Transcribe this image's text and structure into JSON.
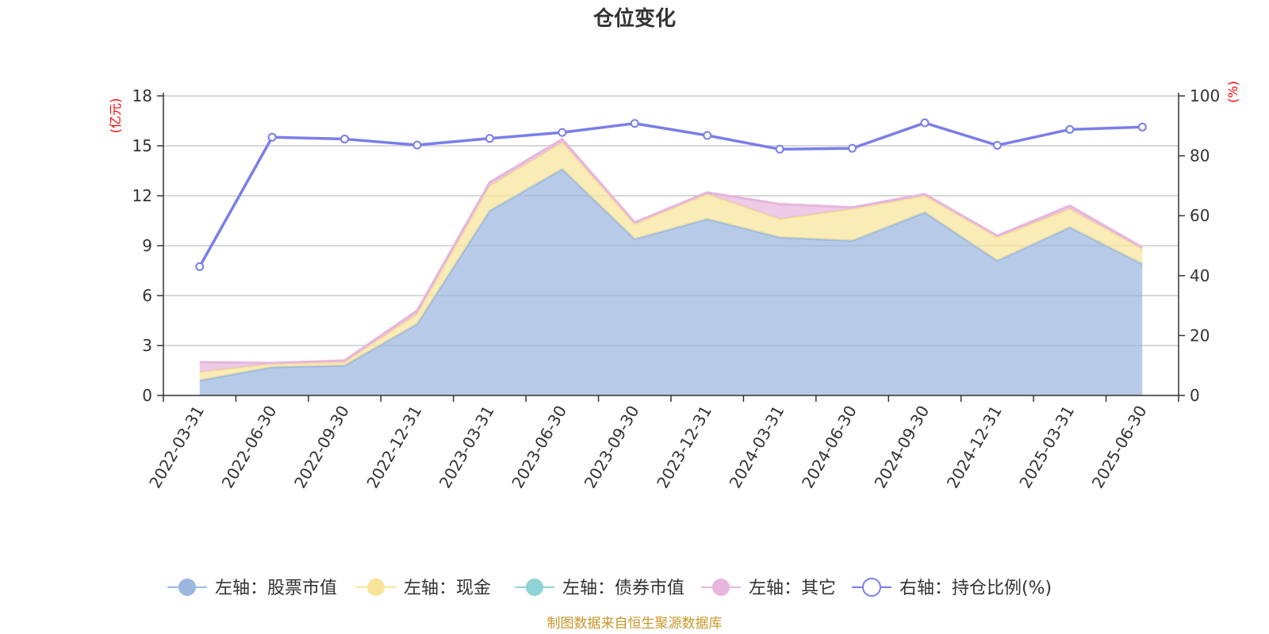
{
  "title": "仓位变化",
  "source_note": "制图数据来自恒生聚源数据库",
  "left_unit": "(亿元)",
  "right_unit": "(%)",
  "colors": {
    "stock": "#9bb7e0",
    "cash": "#f7e49a",
    "bond": "#8fd3d6",
    "other": "#e6b6dd",
    "ratio": "#7a7ee8",
    "axis": "#333333",
    "grid": "#cccccc",
    "unit": "#ff0000"
  },
  "chart_data": {
    "type": "area",
    "title": "仓位变化",
    "categories": [
      "2022-03-31",
      "2022-06-30",
      "2022-09-30",
      "2022-12-31",
      "2023-03-31",
      "2023-06-30",
      "2023-09-30",
      "2023-12-31",
      "2024-03-31",
      "2024-06-30",
      "2024-09-30",
      "2024-12-31",
      "2025-03-31",
      "2025-06-30"
    ],
    "left_axis": {
      "label": "(亿元)",
      "ticks": [
        "0",
        "3",
        "6",
        "9",
        "12",
        "15",
        "18"
      ],
      "ylim": [
        0,
        18
      ]
    },
    "right_axis": {
      "label": "(%)",
      "ticks": [
        "0",
        "20",
        "40",
        "60",
        "80",
        "100"
      ],
      "ylim": [
        0,
        100
      ]
    },
    "legend_position": "bottom",
    "grid": true,
    "series": [
      {
        "key": "stock",
        "name": "左轴：股票市值",
        "axis": "left",
        "stacked": true,
        "values": [
          0.9,
          1.7,
          1.8,
          4.3,
          11.1,
          13.6,
          9.4,
          10.6,
          9.5,
          9.3,
          11.0,
          8.1,
          10.1,
          7.9
        ]
      },
      {
        "key": "cash",
        "name": "左轴：现金",
        "axis": "left",
        "stacked": true,
        "values": [
          0.5,
          0.2,
          0.2,
          0.6,
          1.5,
          1.6,
          0.9,
          1.5,
          1.1,
          1.9,
          1.0,
          1.4,
          1.1,
          0.9
        ]
      },
      {
        "key": "bond",
        "name": "左轴：债券市值",
        "axis": "left",
        "stacked": true,
        "values": [
          0,
          0,
          0,
          0,
          0,
          0,
          0,
          0,
          0,
          0,
          0,
          0,
          0,
          0
        ]
      },
      {
        "key": "other",
        "name": "左轴：其它",
        "axis": "left",
        "stacked": true,
        "values": [
          0.6,
          0.05,
          0.1,
          0.2,
          0.2,
          0.2,
          0.1,
          0.1,
          0.9,
          0.1,
          0.1,
          0.1,
          0.2,
          0.1
        ]
      },
      {
        "key": "ratio",
        "name": "右轴：持仓比例(%)",
        "axis": "right",
        "stacked": false,
        "values": [
          43.0,
          86.2,
          85.6,
          83.6,
          85.8,
          87.8,
          90.8,
          86.8,
          82.2,
          82.5,
          91.0,
          83.5,
          88.8,
          89.6
        ]
      }
    ]
  }
}
